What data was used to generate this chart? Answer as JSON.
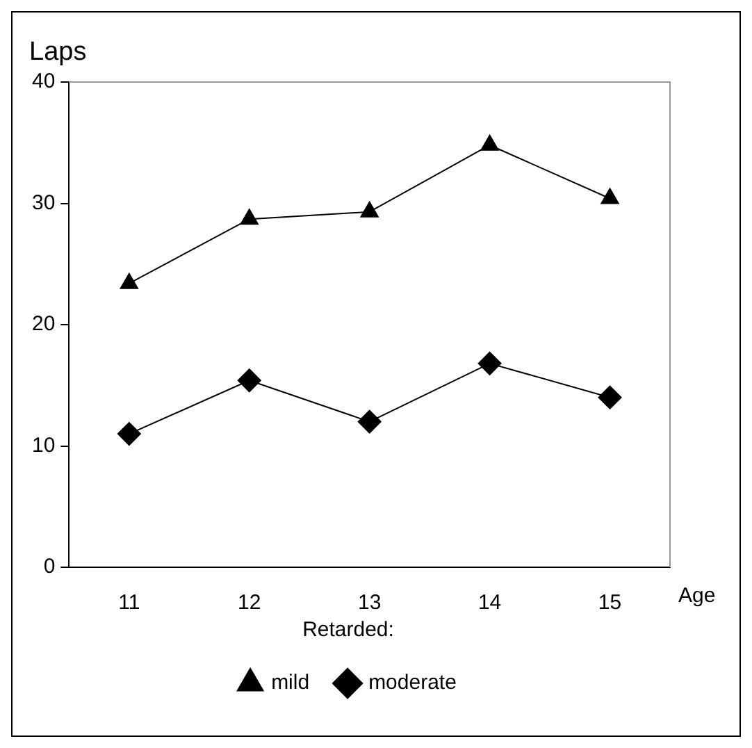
{
  "chart_data": {
    "type": "line",
    "ylabel": "Laps",
    "xlabel": "Age",
    "legend_title": "Retarded:",
    "categories": [
      "11",
      "12",
      "13",
      "14",
      "15"
    ],
    "series": [
      {
        "name": "mild",
        "color": "#000000",
        "marker": "triangle",
        "values": [
          23.4,
          28.7,
          29.3,
          34.8,
          30.4
        ]
      },
      {
        "name": "moderate",
        "color": "#000000",
        "marker": "diamond",
        "values": [
          11.0,
          15.4,
          12.0,
          16.8,
          14.0
        ]
      }
    ],
    "ylim": [
      0,
      40
    ],
    "yticks": [
      0,
      10,
      20,
      30,
      40
    ],
    "grid": false,
    "legend": "bottom",
    "line_style": "solid"
  }
}
